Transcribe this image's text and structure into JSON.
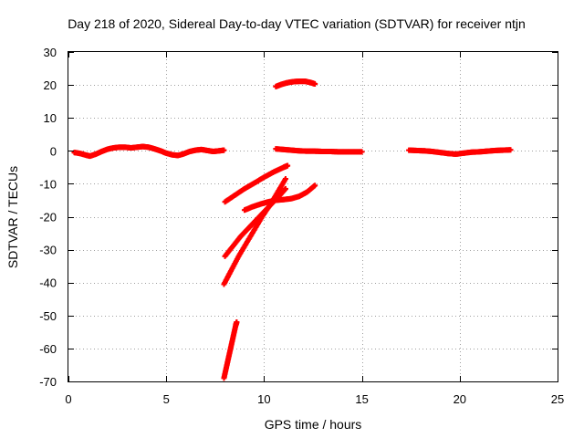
{
  "chart_data": {
    "type": "scatter",
    "title": "Day 218 of 2020, Sidereal Day-to-day VTEC variation (SDTVAR) for receiver ntjn",
    "xlabel": "GPS time / hours",
    "ylabel": "SDTVAR / TECUs",
    "xlim": [
      0,
      25
    ],
    "ylim": [
      -70,
      30
    ],
    "xticks": [
      0,
      5,
      10,
      15,
      20,
      25
    ],
    "yticks": [
      -70,
      -60,
      -50,
      -40,
      -30,
      -20,
      -10,
      0,
      10,
      20,
      30
    ],
    "grid": true,
    "marker": "plus",
    "color": "#ff0000",
    "series": [
      {
        "points": [
          [
            0.3,
            -0.5
          ],
          [
            0.6,
            -0.8
          ],
          [
            0.9,
            -1.3
          ],
          [
            1.1,
            -1.6
          ],
          [
            1.4,
            -1.0
          ],
          [
            1.7,
            -0.2
          ],
          [
            2.0,
            0.5
          ],
          [
            2.3,
            0.9
          ],
          [
            2.6,
            1.1
          ],
          [
            2.9,
            1.1
          ],
          [
            3.2,
            0.9
          ],
          [
            3.5,
            1.1
          ],
          [
            3.8,
            1.3
          ],
          [
            4.1,
            1.1
          ],
          [
            4.4,
            0.6
          ],
          [
            4.7,
            0.0
          ],
          [
            5.0,
            -0.7
          ],
          [
            5.3,
            -1.2
          ],
          [
            5.6,
            -1.4
          ],
          [
            5.9,
            -0.9
          ],
          [
            6.2,
            -0.2
          ],
          [
            6.5,
            0.2
          ],
          [
            6.8,
            0.4
          ],
          [
            7.1,
            0.1
          ],
          [
            7.4,
            -0.2
          ],
          [
            7.7,
            0.0
          ],
          [
            7.95,
            0.2
          ]
        ]
      },
      {
        "points": [
          [
            10.6,
            19.5
          ],
          [
            10.9,
            20.2
          ],
          [
            11.2,
            20.7
          ],
          [
            11.5,
            21.0
          ],
          [
            11.8,
            21.1
          ],
          [
            12.1,
            21.1
          ],
          [
            12.4,
            20.7
          ],
          [
            12.6,
            20.3
          ]
        ]
      },
      {
        "points": [
          [
            10.6,
            0.6
          ],
          [
            11.0,
            0.4
          ],
          [
            11.4,
            0.2
          ],
          [
            11.8,
            0.0
          ],
          [
            12.2,
            -0.1
          ],
          [
            12.6,
            -0.1
          ],
          [
            13.0,
            -0.2
          ],
          [
            13.4,
            -0.2
          ],
          [
            13.8,
            -0.3
          ],
          [
            14.2,
            -0.3
          ],
          [
            14.6,
            -0.3
          ],
          [
            15.0,
            -0.3
          ]
        ]
      },
      {
        "points": [
          [
            17.4,
            0.2
          ],
          [
            17.8,
            0.1
          ],
          [
            18.2,
            0.0
          ],
          [
            18.6,
            -0.2
          ],
          [
            19.0,
            -0.5
          ],
          [
            19.4,
            -0.8
          ],
          [
            19.8,
            -1.0
          ],
          [
            20.2,
            -0.7
          ],
          [
            20.6,
            -0.4
          ],
          [
            21.0,
            -0.3
          ],
          [
            21.4,
            -0.1
          ],
          [
            21.8,
            0.1
          ],
          [
            22.2,
            0.2
          ],
          [
            22.6,
            0.3
          ]
        ]
      },
      {
        "points": [
          [
            8.0,
            -15.5
          ],
          [
            8.5,
            -13.5
          ],
          [
            9.0,
            -11.5
          ],
          [
            9.5,
            -9.8
          ],
          [
            10.0,
            -8.0
          ],
          [
            10.5,
            -6.4
          ],
          [
            11.0,
            -5.0
          ],
          [
            11.2,
            -4.5
          ]
        ]
      },
      {
        "points": [
          [
            8.0,
            -32.0
          ],
          [
            8.4,
            -29.0
          ],
          [
            8.8,
            -26.0
          ],
          [
            9.2,
            -23.5
          ],
          [
            9.6,
            -21.0
          ],
          [
            10.0,
            -18.5
          ],
          [
            10.4,
            -16.0
          ],
          [
            10.8,
            -13.5
          ],
          [
            11.1,
            -11.5
          ]
        ]
      },
      {
        "points": [
          [
            7.95,
            -40.5
          ],
          [
            8.3,
            -36.5
          ],
          [
            8.7,
            -32.0
          ],
          [
            9.1,
            -28.0
          ],
          [
            9.5,
            -24.0
          ],
          [
            9.9,
            -20.0
          ],
          [
            10.3,
            -16.5
          ],
          [
            10.7,
            -12.5
          ],
          [
            11.1,
            -8.5
          ]
        ]
      },
      {
        "points": [
          [
            9.0,
            -18.0
          ],
          [
            9.4,
            -17.0
          ],
          [
            9.8,
            -16.2
          ],
          [
            10.2,
            -15.5
          ],
          [
            10.6,
            -15.0
          ],
          [
            11.0,
            -14.8
          ],
          [
            11.4,
            -14.5
          ],
          [
            11.8,
            -13.8
          ],
          [
            12.2,
            -12.5
          ],
          [
            12.6,
            -10.5
          ]
        ]
      },
      {
        "points": [
          [
            7.95,
            -69.0
          ],
          [
            8.1,
            -65.0
          ],
          [
            8.25,
            -61.0
          ],
          [
            8.4,
            -57.0
          ],
          [
            8.55,
            -53.0
          ],
          [
            8.6,
            -52.0
          ]
        ]
      }
    ]
  }
}
